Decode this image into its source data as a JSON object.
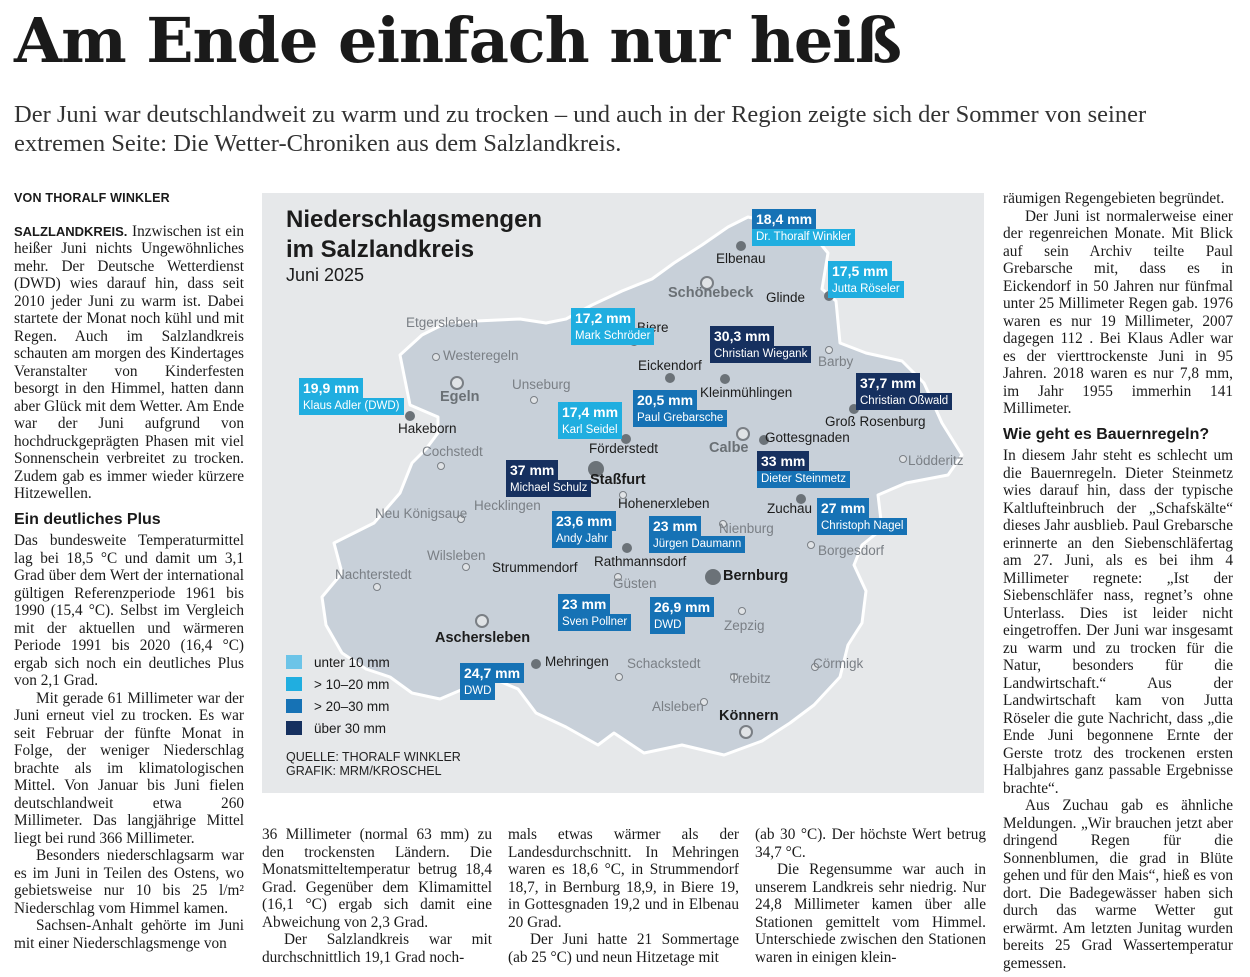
{
  "article": {
    "headline": "Am Ende einfach nur heiß",
    "subheadline": "Der Juni war deutschlandweit zu warm und zu trocken – und auch in der Region zeigte sich der Sommer von seiner extremen Seite: Die Wetter-Chroniken aus dem Salzlandkreis.",
    "byline": "VON THORALF WINKLER",
    "dateline": "SALZLANDKREIS.",
    "col1": {
      "p1": "Inzwischen ist ein heißer Juni nichts Ungewöhnliches mehr. Der Deutsche Wetterdienst (DWD) wies darauf hin, dass seit 2010 jeder Juni zu warm ist. Dabei startete der Monat noch kühl und mit Regen. Auch im Salzlandkreis schauten am morgen des Kindertages Veranstalter von Kinderfesten besorgt in den Himmel, hatten dann aber Glück mit dem Wetter. Am Ende war der Juni aufgrund von hochdruckgeprägten Phasen mit viel Sonnenschein verbreitet zu trocken. Zudem gab es immer wieder kürzere Hitzewellen.",
      "h1": "Ein deutliches Plus",
      "p2": "Das bundesweite Temperaturmittel lag bei 18,5 °C und damit um 3,1 Grad über dem Wert der international gültigen Referenzperiode 1961 bis 1990 (15,4 °C). Selbst im Vergleich mit der aktuellen und wärmeren Periode 1991 bis 2020 (16,4 °C) ergab sich noch ein deutliches Plus von 2,1 Grad.",
      "p3": "Mit gerade 61 Millimeter war der Juni erneut viel zu trocken. Es war seit Februar der fünfte Monat in Folge, der weniger Niederschlag brachte als im klimatologischen Mittel. Von Januar bis Juni fielen deutschlandweit etwa 260 Millimeter. Das langjährige Mittel liegt bei rund 366 Millimeter.",
      "p4": "Besonders niederschlagsarm war es im Juni in Teilen des Ostens, wo gebietsweise nur 10 bis 25 l/m² Niederschlag vom Himmel kamen.",
      "p5": "Sachsen-Anhalt gehörte im Juni mit einer Niederschlagsmenge von"
    },
    "col2": {
      "p1": "36 Millimeter (normal 63 mm) zu den trockensten Ländern. Die Monatsmitteltemperatur betrug 18,4 Grad. Gegenüber dem Klimamittel (16,1 °C) ergab sich damit eine Abweichung von 2,3 Grad.",
      "p2": "Der Salzlandkreis war mit durchschnittlich 19,1 Grad noch-"
    },
    "col3": {
      "p1": "mals etwas wärmer als der Landesdurchschnitt. In Mehringen waren es 18,6 °C, in Strummendorf 18,7, in Bernburg 18,9, in Biere 19, in Gottesgnaden 19,2 und in Elbenau 20 Grad.",
      "p2": "Der Juni hatte 21 Sommertage (ab 25 °C) und neun Hitzetage mit"
    },
    "col4": {
      "p1": "(ab 30 °C). Der höchste Wert betrug 34,7 °C.",
      "p2": "Die Regensumme war auch in unserem Landkreis sehr niedrig. Nur 24,8 Millimeter kamen über alle Stationen gemittelt vom Himmel. Unterschiede zwischen den Stationen waren in einigen klein-"
    },
    "col5": {
      "p1": "räumigen Regengebieten begründet.",
      "p2": "Der Juni ist normalerweise einer der regenreichen Monate. Mit Blick auf sein Archiv teilte Paul Grebarsche mit, dass es in Eickendorf in 50 Jahren nur fünfmal unter 25 Millimeter Regen gab. 1976 waren es nur 19 Millimeter, 2007 dagegen 112 . Bei Klaus Adler war es der vierttrockenste Juni in 95 Jahren. 2018 waren es nur 7,8 mm, im Jahr 1955 immerhin 141 Millimeter.",
      "h1": "Wie geht es Bauernregeln?",
      "p3": "In diesem Jahr steht es schlecht um die Bauernregeln. Dieter Steinmetz wies darauf hin, dass der typische Kaltlufteinbruch der „Schafskälte“ dieses Jahr ausblieb. Paul Grebarsche erinnerte an den Siebenschläfertag am 27. Juni, als es bei ihm 4 Millimeter regnete: „Ist der Siebenschläfer nass, regnet’s ohne Unterlass. Dies ist leider nicht eingetroffen. Der Juni war insgesamt zu warm und zu trocken für die Natur, besonders für die Landwirtschaft.“ Aus der Landwirtschaft kam von Jutta Röseler die gute Nachricht, dass „die Ende Juni begonnene Ernte der Gerste trotz des trockenen ersten Halbjahres ganz passable Ergebnisse brachte“.",
      "p4": "Aus Zuchau gab es ähnliche Meldungen. „Wir brauchen jetzt aber dringend Regen für die Sonnenblumen, die grad in Blüte gehen und für den Mais“, hieß es von dort. Die Badegewässer haben sich durch das warme Wetter gut erwärmt. Am letzten Junitag wurden bereits 25 Grad Wassertemperatur gemessen."
    }
  },
  "map": {
    "title_line1": "Niederschlagsmengen",
    "title_line2": "im Salzlandkreis",
    "subtitle": "Juni 2025",
    "source": "QUELLE: THORALF WINKLER",
    "graphic": "GRAFIK: MRM/KROSCHEL",
    "colors": {
      "region": "#c8d0d9",
      "under10": "#6cc4e8",
      "c10_20": "#20aee0",
      "c20_30": "#1672b5",
      "over30": "#16305f"
    },
    "legend": [
      "unter 10 mm",
      "> 10–20 mm",
      "> 20–30 mm",
      "über 30 mm"
    ],
    "places": {
      "etgersleben": "Etgersleben",
      "westeregeln": "Westeregeln",
      "egeln": "Egeln",
      "unseburg": "Unseburg",
      "hakeborn": "Hakeborn",
      "cochstedt": "Cochstedt",
      "neukoenigsaue": "Neu Königsaue",
      "hecklingen": "Hecklingen",
      "wilsleben": "Wilsleben",
      "nachterstedt": "Nachterstedt",
      "aschersleben": "Aschersleben",
      "mehringen": "Mehringen",
      "schackstedt": "Schackstedt",
      "aschleben": "Alsleben",
      "koennern": "Könnern",
      "trebitz": "Trebitz",
      "cormigk": "Cörmigk",
      "zepzig": "Zepzig",
      "bernburg": "Bernburg",
      "guesten": "Güsten",
      "rathmannsdorf": "Rathmannsdorf",
      "strummendorf": "Strummendorf",
      "stassfurt": "Staßfurt",
      "hohenerxleben": "Hohenerxleben",
      "foerderstedt": "Förderstedt",
      "nienburg": "Nienburg",
      "borgesdorf": "Borgesdorf",
      "zuchau": "Zuchau",
      "calbe": "Calbe",
      "gottesgnaden": "Gottesgnaden",
      "loedderitz": "Lödderitz",
      "grossrosenburg": "Groß Rosenburg",
      "barby": "Barby",
      "kleinmuehlingen": "Kleinmühlingen",
      "eickendorf": "Eickendorf",
      "biere": "Biere",
      "schoenebeck": "Schönebeck",
      "elbenau": "Elbenau",
      "glinde": "Glinde"
    },
    "stations": {
      "elbenau": {
        "value": "18,4 mm",
        "observer": "Dr. Thoralf Winkler",
        "mm": 18.4
      },
      "glinde": {
        "value": "17,5 mm",
        "observer": "Jutta Röseler",
        "mm": 17.5
      },
      "biere": {
        "value": "17,2 mm",
        "observer": "Mark Schröder",
        "mm": 17.2
      },
      "kleinmuehlingen": {
        "value": "30,3 mm",
        "observer": "Christian Wiegank",
        "mm": 30.3
      },
      "grossrosenburg": {
        "value": "37,7 mm",
        "observer": "Christian Oßwald",
        "mm": 37.7
      },
      "eickendorf": {
        "value": "20,5 mm",
        "observer": "Paul Grebarsche",
        "mm": 20.5
      },
      "hakeborn": {
        "value": "19,9 mm",
        "observer": "Klaus Adler (DWD)",
        "mm": 19.9
      },
      "foerderstedt": {
        "value": "17,4 mm",
        "observer": "Karl Seidel",
        "mm": 17.4
      },
      "gottesgnaden": {
        "value": "33 mm",
        "observer": "Dieter Steinmetz",
        "mm": 33
      },
      "stassfurt": {
        "value": "37 mm",
        "observer": "Michael Schulz",
        "mm": 37
      },
      "zuchau": {
        "value": "27 mm",
        "observer": "Christoph Nagel",
        "mm": 27
      },
      "hohenerxleben": {
        "value": "23,6 mm",
        "observer": "Andy Jahr",
        "mm": 23.6
      },
      "rathmannsdorf": {
        "value": "23 mm",
        "observer": "Jürgen Daumann",
        "mm": 23
      },
      "strummendorf": {
        "value": "23 mm",
        "observer": "Sven Pollner",
        "mm": 23
      },
      "bernburg": {
        "value": "26,9 mm",
        "observer": "DWD",
        "mm": 26.9
      },
      "mehringen": {
        "value": "24,7 mm",
        "observer": "DWD",
        "mm": 24.7
      }
    }
  }
}
